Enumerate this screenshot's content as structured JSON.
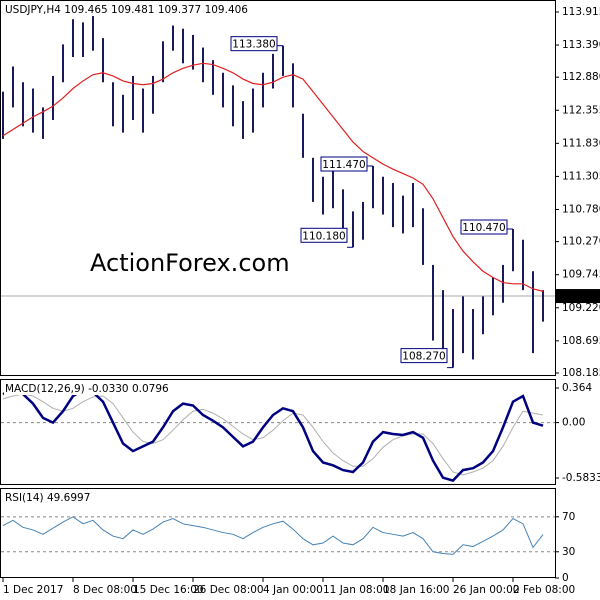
{
  "chart_data": [
    {
      "type": "ohlc",
      "title": "USDJPY,H4 109.465 109.481 109.377 109.406",
      "color": "#1a1a5a",
      "watermark": "ActionForex.com",
      "high": [
        112.65,
        113.05,
        112.8,
        112.7,
        112.4,
        112.9,
        113.4,
        113.8,
        113.75,
        113.85,
        113.5,
        112.8,
        112.6,
        112.9,
        112.7,
        112.9,
        113.45,
        113.7,
        113.65,
        113.55,
        113.35,
        113.15,
        112.95,
        112.75,
        112.5,
        112.7,
        112.95,
        113.25,
        113.38,
        113.1,
        112.3,
        111.6,
        111.3,
        111.45,
        111.1,
        110.75,
        110.9,
        111.47,
        111.3,
        111.2,
        111.0,
        111.2,
        110.8,
        109.9,
        109.5,
        109.2,
        109.4,
        109.2,
        109.4,
        109.7,
        109.9,
        110.47,
        110.3,
        109.8,
        109.5
      ],
      "low": [
        111.9,
        112.4,
        112.1,
        112.0,
        111.9,
        112.2,
        112.8,
        113.2,
        113.2,
        113.3,
        112.8,
        112.1,
        112.0,
        112.2,
        112.0,
        112.3,
        112.8,
        113.3,
        113.1,
        113.0,
        112.8,
        112.6,
        112.4,
        112.1,
        111.9,
        112.0,
        112.4,
        112.7,
        112.9,
        112.4,
        111.6,
        110.9,
        110.7,
        110.8,
        110.4,
        110.18,
        110.3,
        110.8,
        110.7,
        110.5,
        110.4,
        110.5,
        109.9,
        108.7,
        108.4,
        108.27,
        108.5,
        108.4,
        108.8,
        109.1,
        109.3,
        109.8,
        109.5,
        108.5,
        109.0
      ],
      "ma": {
        "color": "#e02020",
        "values": [
          111.95,
          112.05,
          112.15,
          112.25,
          112.33,
          112.42,
          112.55,
          112.7,
          112.82,
          112.92,
          112.95,
          112.9,
          112.82,
          112.78,
          112.76,
          112.78,
          112.85,
          112.95,
          113.02,
          113.07,
          113.1,
          113.08,
          113.02,
          112.95,
          112.85,
          112.78,
          112.76,
          112.8,
          112.88,
          112.92,
          112.85,
          112.65,
          112.45,
          112.25,
          112.05,
          111.85,
          111.7,
          111.6,
          111.5,
          111.42,
          111.35,
          111.28,
          111.18,
          110.95,
          110.65,
          110.35,
          110.12,
          109.95,
          109.8,
          109.7,
          109.62,
          109.6,
          109.6,
          109.52,
          109.48
        ]
      },
      "last": 109.406,
      "annotations": [
        {
          "value": 113.38,
          "label": "113.380"
        },
        {
          "value": 111.47,
          "label": "111.470"
        },
        {
          "value": 110.18,
          "label": "110.180"
        },
        {
          "value": 110.47,
          "label": "110.470"
        },
        {
          "value": 108.27,
          "label": "108.270"
        }
      ],
      "ylim": [
        108.137,
        114.105
      ],
      "yticks": [
        113.915,
        {
          "value": 113.39,
          "label": "113.390"
        },
        {
          "value": 112.88,
          "label": "112.880"
        },
        112.355,
        {
          "value": 111.83,
          "label": "111.830"
        },
        111.305,
        {
          "value": 110.78,
          "label": "110.780"
        },
        {
          "value": 110.27,
          "label": "110.270"
        },
        109.745,
        {
          "value": 109.22,
          "label": "109.220"
        },
        108.695,
        108.185
      ]
    },
    {
      "type": "macd",
      "title": "MACD(12,26,9) -0.0330 0.0796",
      "series": [
        {
          "color": "#000080",
          "values": [
            0.3,
            0.35,
            0.3,
            0.2,
            0.05,
            0.0,
            0.12,
            0.28,
            0.34,
            0.32,
            0.22,
            0.0,
            -0.22,
            -0.3,
            -0.25,
            -0.2,
            -0.05,
            0.12,
            0.2,
            0.18,
            0.08,
            0.02,
            -0.05,
            -0.15,
            -0.25,
            -0.2,
            -0.05,
            0.08,
            0.15,
            0.12,
            -0.05,
            -0.3,
            -0.42,
            -0.45,
            -0.5,
            -0.52,
            -0.42,
            -0.2,
            -0.1,
            -0.12,
            -0.13,
            -0.1,
            -0.16,
            -0.4,
            -0.58,
            -0.61,
            -0.5,
            -0.48,
            -0.42,
            -0.3,
            -0.05,
            0.22,
            0.28,
            0.0,
            -0.033
          ]
        },
        {
          "color": "#b0b0b0",
          "values": [
            0.25,
            0.28,
            0.3,
            0.28,
            0.22,
            0.15,
            0.12,
            0.15,
            0.22,
            0.27,
            0.28,
            0.2,
            0.05,
            -0.1,
            -0.2,
            -0.22,
            -0.18,
            -0.08,
            0.03,
            0.12,
            0.14,
            0.1,
            0.04,
            -0.04,
            -0.12,
            -0.18,
            -0.16,
            -0.08,
            0.02,
            0.1,
            0.08,
            -0.05,
            -0.2,
            -0.32,
            -0.4,
            -0.46,
            -0.46,
            -0.38,
            -0.26,
            -0.18,
            -0.14,
            -0.12,
            -0.12,
            -0.22,
            -0.38,
            -0.52,
            -0.55,
            -0.52,
            -0.48,
            -0.4,
            -0.25,
            -0.05,
            0.12,
            0.1,
            0.0796
          ]
        }
      ],
      "ylim": [
        -0.657,
        0.459
      ],
      "yticks": [
        0.364,
        {
          "value": 0,
          "label": "0.00"
        },
        -0.5833
      ]
    },
    {
      "type": "rsi",
      "title": "RSI(14) 49.6997",
      "color": "#4682b4",
      "values": [
        60,
        66,
        58,
        55,
        50,
        57,
        64,
        70,
        62,
        66,
        55,
        48,
        45,
        55,
        50,
        56,
        64,
        68,
        62,
        60,
        58,
        55,
        52,
        50,
        45,
        52,
        58,
        62,
        65,
        56,
        45,
        38,
        40,
        48,
        40,
        38,
        45,
        58,
        52,
        50,
        48,
        52,
        45,
        30,
        28,
        27,
        38,
        36,
        42,
        48,
        55,
        68,
        62,
        35,
        49.6997
      ],
      "ylim": [
        0,
        103
      ],
      "yticks": [
        70,
        30,
        0
      ],
      "categories": [
        "1 Dec 2017",
        null,
        null,
        null,
        null,
        null,
        null,
        "8 Dec 08:00",
        null,
        null,
        null,
        null,
        null,
        "15 Dec 16:00",
        null,
        null,
        null,
        null,
        null,
        "26 Dec 08:00",
        null,
        null,
        null,
        null,
        null,
        null,
        "4 Jan 00:00",
        null,
        null,
        null,
        null,
        null,
        "11 Jan 08:00",
        null,
        null,
        null,
        null,
        null,
        "18 Jan 16:00",
        null,
        null,
        null,
        null,
        null,
        null,
        "26 Jan 00:00",
        null,
        null,
        null,
        null,
        null,
        "2 Feb 08:00",
        null,
        null,
        null
      ]
    }
  ]
}
